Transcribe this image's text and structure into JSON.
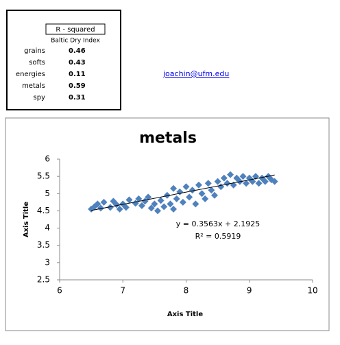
{
  "table": {
    "header": "R - squared",
    "subheader": "Baltic Dry Index",
    "rows": [
      [
        "grains",
        0.46
      ],
      [
        "softs",
        0.43
      ],
      [
        "energies",
        0.11
      ],
      [
        "metals",
        0.59
      ],
      [
        "spy",
        0.31
      ]
    ]
  },
  "link": "joachin@ufm.edu",
  "chart_data": {
    "type": "scatter",
    "title": "metals",
    "x_label": "Axis Title",
    "y_label": "Axis Title",
    "xlim": [
      6,
      10
    ],
    "xticks": [
      6,
      7,
      8,
      9,
      10
    ],
    "ylim": [
      2.5,
      6
    ],
    "yticks": [
      2.5,
      3,
      3.5,
      4,
      4.5,
      5,
      5.5,
      6
    ],
    "grid": false,
    "series": [
      {
        "color": "#4f81bd",
        "x": [
          6.5,
          6.55,
          6.6,
          6.65,
          6.7,
          6.8,
          6.85,
          6.9,
          6.95,
          7.0,
          7.05,
          7.1,
          7.2,
          7.25,
          7.3,
          7.35,
          7.4,
          7.45,
          7.5,
          7.55,
          7.6,
          7.65,
          7.7,
          7.75,
          7.8,
          7.8,
          7.85,
          7.9,
          7.95,
          8.0,
          8.05,
          8.1,
          8.15,
          8.2,
          8.25,
          8.3,
          8.35,
          8.4,
          8.45,
          8.5,
          8.55,
          8.6,
          8.65,
          8.7,
          8.75,
          8.8,
          8.85,
          8.9,
          8.95,
          9.0,
          9.05,
          9.1,
          9.15,
          9.2,
          9.25,
          9.3,
          9.35,
          9.4
        ],
        "values": [
          4.55,
          4.62,
          4.7,
          4.58,
          4.75,
          4.6,
          4.78,
          4.68,
          4.55,
          4.7,
          4.6,
          4.82,
          4.72,
          4.85,
          4.65,
          4.78,
          4.9,
          4.58,
          4.7,
          4.5,
          4.8,
          4.62,
          4.95,
          4.7,
          5.15,
          4.55,
          4.85,
          5.05,
          4.75,
          5.2,
          4.9,
          5.1,
          4.7,
          5.25,
          5.0,
          4.85,
          5.3,
          5.1,
          4.95,
          5.35,
          5.2,
          5.45,
          5.3,
          5.55,
          5.25,
          5.45,
          5.35,
          5.5,
          5.3,
          5.45,
          5.35,
          5.5,
          5.3,
          5.45,
          5.35,
          5.5,
          5.4,
          5.35
        ]
      }
    ],
    "trendline": {
      "x": [
        6.5,
        9.4
      ],
      "values": [
        4.51,
        5.54
      ],
      "color": "#000000",
      "equation": "y = 0.3563x + 2.1925",
      "r_squared": "R² = 0.5919"
    }
  }
}
